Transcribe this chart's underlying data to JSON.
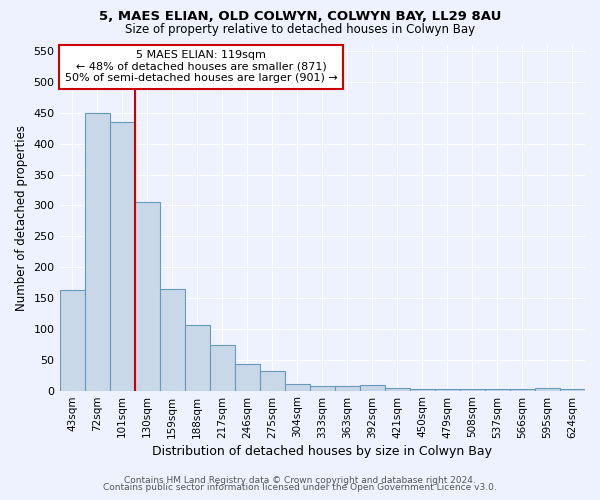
{
  "title": "5, MAES ELIAN, OLD COLWYN, COLWYN BAY, LL29 8AU",
  "subtitle": "Size of property relative to detached houses in Colwyn Bay",
  "xlabel": "Distribution of detached houses by size in Colwyn Bay",
  "ylabel": "Number of detached properties",
  "footnote1": "Contains HM Land Registry data © Crown copyright and database right 2024.",
  "footnote2": "Contains public sector information licensed under the Open Government Licence v3.0.",
  "categories": [
    "43sqm",
    "72sqm",
    "101sqm",
    "130sqm",
    "159sqm",
    "188sqm",
    "217sqm",
    "246sqm",
    "275sqm",
    "304sqm",
    "333sqm",
    "363sqm",
    "392sqm",
    "421sqm",
    "450sqm",
    "479sqm",
    "508sqm",
    "537sqm",
    "566sqm",
    "595sqm",
    "624sqm"
  ],
  "values": [
    163,
    450,
    435,
    305,
    165,
    107,
    74,
    43,
    31,
    10,
    8,
    8,
    9,
    4,
    3,
    2,
    2,
    2,
    2,
    4,
    3
  ],
  "bar_color": "#c8d8e8",
  "bar_edge_color": "#6699bb",
  "background_color": "#eef2ff",
  "grid_color": "#ffffff",
  "vline_x": 2.5,
  "vline_color": "#cc0000",
  "annotation_text": "5 MAES ELIAN: 119sqm\n← 48% of detached houses are smaller (871)\n50% of semi-detached houses are larger (901) →",
  "annotation_box_color": "#ffffff",
  "annotation_box_edge": "#cc0000",
  "ylim": [
    0,
    560
  ],
  "yticks": [
    0,
    50,
    100,
    150,
    200,
    250,
    300,
    350,
    400,
    450,
    500,
    550
  ]
}
